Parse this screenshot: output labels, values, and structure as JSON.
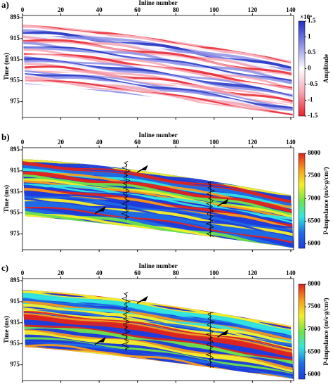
{
  "chart_data": [
    {
      "type": "seismic",
      "panel_label": "a)",
      "x_label": "Inline number",
      "y_label": "Time (ms)",
      "xlim": [
        0,
        141.5
      ],
      "xticks": [
        0,
        20,
        40,
        60,
        80,
        100,
        120,
        140
      ],
      "ylim": [
        893,
        990
      ],
      "yticks": [
        895,
        915,
        935,
        955,
        975
      ],
      "colorbar_label": "Amplitude",
      "colorbar_exponent": "×10⁴",
      "colorbar_lim": [
        -1.5,
        1.5
      ],
      "colorbar_ticks": [
        -1.5,
        -1,
        -0.5,
        0,
        0.5,
        1,
        1.5
      ],
      "colormap": [
        "#e8202a",
        "#f7a6b4",
        "#ffffff",
        "#8d8fe6",
        "#1f2fc4"
      ]
    },
    {
      "type": "seismic",
      "panel_label": "b)",
      "x_label": "Inline number",
      "y_label": "Time (ms)",
      "xlim": [
        0,
        141.5
      ],
      "xticks": [
        0,
        20,
        40,
        60,
        80,
        100,
        120,
        140
      ],
      "ylim": [
        893,
        990
      ],
      "yticks": [
        895,
        915,
        935,
        955,
        975
      ],
      "colorbar_label": "P-impedance (m/s·g/cm³)",
      "colorbar_lim": [
        5900,
        8000
      ],
      "colorbar_ticks": [
        6000,
        6500,
        7000,
        7500,
        8000
      ],
      "colormap": [
        "#1f3ddb",
        "#1f6ce6",
        "#33e6e0",
        "#6ee34a",
        "#f5ef2a",
        "#f59b1e",
        "#e0241e"
      ]
    },
    {
      "type": "seismic",
      "panel_label": "c)",
      "x_label": "Inline number",
      "y_label": "Time (ms)",
      "xlim": [
        0,
        141.5
      ],
      "xticks": [
        0,
        20,
        40,
        60,
        80,
        100,
        120,
        140
      ],
      "ylim": [
        893,
        990
      ],
      "yticks": [
        895,
        915,
        935,
        955,
        975
      ],
      "colorbar_label": "P-impedance (m/s·g/cm³)",
      "colorbar_lim": [
        5900,
        8000
      ],
      "colorbar_ticks": [
        6000,
        6500,
        7000,
        7500,
        8000
      ],
      "colormap": [
        "#1f3ddb",
        "#1f6ce6",
        "#33e6e0",
        "#6ee34a",
        "#f5ef2a",
        "#f59b1e",
        "#e0241e"
      ]
    }
  ]
}
